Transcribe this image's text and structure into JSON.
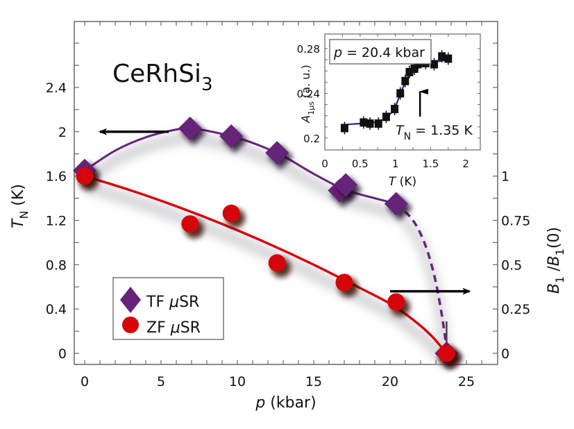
{
  "chart_data": {
    "type": "scatter",
    "title": "CeRhSi3",
    "title_main": "CeRhSi",
    "title_subscript": "3",
    "xlabel": "p (kbar)",
    "xlabel_italic": "p",
    "xlabel_unit": " (kbar)",
    "ylabel_left": "T_N (K)",
    "ylabel_left_parts": {
      "main": "T",
      "sub": "N",
      "unit": " (K)"
    },
    "ylabel_right": "B_1/B_1(0)",
    "ylabel_right_parts": {
      "b": "B",
      "sub": "1",
      "slash": " /",
      "sub2": "1",
      "tail": "(0)"
    },
    "xlim": [
      -0.7,
      27.0
    ],
    "ylim_left": [
      -0.1,
      2.98
    ],
    "ylim_right_mapping": {
      "right_value_1_at_left": 1.6
    },
    "x_ticks": [
      0,
      5,
      10,
      15,
      20,
      25
    ],
    "x_tick_labels": [
      "0",
      "5",
      "10",
      "15",
      "20",
      "25"
    ],
    "x_minor_step": 1,
    "y_left_ticks": [
      0,
      0.4,
      0.8,
      1.2,
      1.6,
      2.0,
      2.4
    ],
    "y_left_tick_labels": [
      "0",
      "0.4",
      "0.8",
      "1.2",
      "1.6",
      "2",
      "2.4"
    ],
    "y_left_minor_step": 0.2,
    "y_right_ticks": [
      0,
      0.25,
      0.5,
      0.75,
      1.0
    ],
    "y_right_tick_labels": [
      "0",
      "0.25",
      "0.5",
      "0.75",
      "1"
    ],
    "y_right_minor_step": 0.125,
    "grid": false,
    "legend_position": "lower-left",
    "series": [
      {
        "name": "TF μSR",
        "legend_main": "TF ",
        "legend_mu": "μ",
        "legend_tail": "SR",
        "marker": "diamond",
        "color": "#66237a",
        "axis": "left",
        "points": [
          {
            "x": 0.0,
            "y": 1.65
          },
          {
            "x": 6.9,
            "y": 2.03
          },
          {
            "x": 9.6,
            "y": 1.96
          },
          {
            "x": 12.6,
            "y": 1.81
          },
          {
            "x": 16.7,
            "y": 1.47
          },
          {
            "x": 17.1,
            "y": 1.52
          },
          {
            "x": 20.4,
            "y": 1.35
          },
          {
            "x": 23.7,
            "y": 0.0
          }
        ],
        "fit_solid": [
          [
            0,
            1.65
          ],
          [
            2,
            1.83
          ],
          [
            4,
            1.95
          ],
          [
            6,
            2.02
          ],
          [
            7,
            2.03
          ],
          [
            9,
            1.98
          ],
          [
            11,
            1.9
          ],
          [
            13,
            1.78
          ],
          [
            15,
            1.62
          ],
          [
            17,
            1.48
          ],
          [
            19,
            1.4
          ],
          [
            20.4,
            1.35
          ]
        ],
        "fit_dashed": [
          [
            20.4,
            1.35
          ],
          [
            21.5,
            1.2
          ],
          [
            22.3,
            0.98
          ],
          [
            22.9,
            0.7
          ],
          [
            23.3,
            0.42
          ],
          [
            23.6,
            0.15
          ],
          [
            23.7,
            0.0
          ]
        ]
      },
      {
        "name": "ZF μSR",
        "legend_main": "ZF ",
        "legend_mu": "μ",
        "legend_tail": "SR",
        "marker": "circle",
        "color": "#d6050b",
        "axis": "right",
        "points": [
          {
            "x": 0.0,
            "y": 1.0
          },
          {
            "x": 6.9,
            "y": 0.73
          },
          {
            "x": 9.6,
            "y": 0.79
          },
          {
            "x": 12.6,
            "y": 0.51
          },
          {
            "x": 17.0,
            "y": 0.4
          },
          {
            "x": 20.4,
            "y": 0.29
          },
          {
            "x": 23.7,
            "y": 0.0
          }
        ],
        "fit": [
          [
            0,
            1.0
          ],
          [
            3,
            0.92
          ],
          [
            6,
            0.83
          ],
          [
            9,
            0.73
          ],
          [
            12,
            0.62
          ],
          [
            15,
            0.5
          ],
          [
            18,
            0.37
          ],
          [
            20,
            0.28
          ],
          [
            21.5,
            0.19
          ],
          [
            22.7,
            0.1
          ],
          [
            23.7,
            0.0
          ]
        ]
      }
    ],
    "annotations": [
      {
        "type": "arrow",
        "direction": "left",
        "meaning": "TF data read on left axis",
        "from": [
          5.5,
          2.0
        ],
        "to": [
          1.0,
          2.0
        ]
      },
      {
        "type": "arrow",
        "direction": "right",
        "meaning": "ZF data read on right axis",
        "from": [
          20.0,
          0.35
        ],
        "to": [
          25.2,
          0.35
        ]
      },
      {
        "type": "errorbar",
        "x": 23.7,
        "y_from": 0.0,
        "y_to": 0.18
      }
    ],
    "inset": {
      "type": "scatter",
      "xlabel": "T (K)",
      "xlabel_italic": "T",
      "xlabel_unit": " (K)",
      "ylabel": "A_1μs (a. u.)",
      "ylabel_parts": {
        "main": "A",
        "sub": "1μs",
        "unit": " (a. u.)"
      },
      "xlim": [
        0,
        2.2
      ],
      "ylim": [
        0.193,
        0.296
      ],
      "x_ticks": [
        0,
        0.5,
        1,
        1.5,
        2
      ],
      "x_tick_labels": [
        "0",
        "0.5",
        "1",
        "1.5",
        "2"
      ],
      "x_minor_step": 0.25,
      "y_ticks": [
        0.2,
        0.24,
        0.28
      ],
      "y_tick_labels": [
        "0.2",
        "0.24",
        "0.28"
      ],
      "y_minor_step": 0.01,
      "box_label": "p = 20.4 kbar",
      "box_label_italic": "p",
      "box_label_rest": " = 20.4 kbar",
      "annotation": "T_N = 1.35 K",
      "annotation_parts": {
        "main": "T",
        "sub": "N",
        "rest": " = 1.35 K"
      },
      "arrow_x": 1.35,
      "marker_color": "#111111",
      "fit_color": "#1f2a8c",
      "points": [
        {
          "x": 0.28,
          "y": 0.209
        },
        {
          "x": 0.55,
          "y": 0.214
        },
        {
          "x": 0.64,
          "y": 0.213
        },
        {
          "x": 0.76,
          "y": 0.213
        },
        {
          "x": 0.87,
          "y": 0.219
        },
        {
          "x": 0.99,
          "y": 0.226
        },
        {
          "x": 1.07,
          "y": 0.24
        },
        {
          "x": 1.14,
          "y": 0.251
        },
        {
          "x": 1.2,
          "y": 0.259
        },
        {
          "x": 1.27,
          "y": 0.262
        },
        {
          "x": 1.32,
          "y": 0.266
        },
        {
          "x": 1.43,
          "y": 0.267
        },
        {
          "x": 1.55,
          "y": 0.266
        },
        {
          "x": 1.66,
          "y": 0.273
        },
        {
          "x": 1.75,
          "y": 0.271
        }
      ],
      "fit": [
        [
          0.28,
          0.212
        ],
        [
          0.5,
          0.213
        ],
        [
          0.7,
          0.214
        ],
        [
          0.85,
          0.217
        ],
        [
          0.95,
          0.223
        ],
        [
          1.02,
          0.231
        ],
        [
          1.08,
          0.241
        ],
        [
          1.14,
          0.25
        ],
        [
          1.2,
          0.257
        ],
        [
          1.28,
          0.262
        ],
        [
          1.4,
          0.266
        ],
        [
          1.55,
          0.268
        ],
        [
          1.75,
          0.27
        ]
      ]
    }
  }
}
